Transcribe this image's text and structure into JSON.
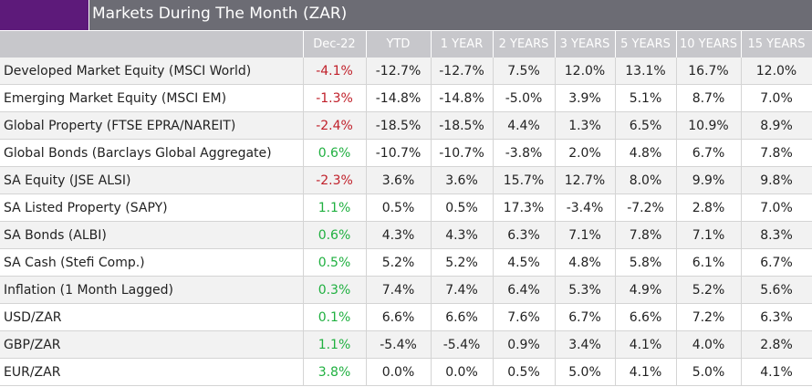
{
  "title": "Markets During The Month (ZAR)",
  "colors": {
    "title_bar": "#6c6c74",
    "title_swatch": "#5d1a7a",
    "header_bg": "#c7c7cb",
    "negative": "#c0202a",
    "positive": "#20b040"
  },
  "chart_data": {
    "type": "table",
    "columns": [
      "Dec-22",
      "YTD",
      "1 YEAR",
      "2 YEARS",
      "3 YEARS",
      "5 YEARS",
      "10 YEARS",
      "15 YEARS"
    ],
    "rows": [
      {
        "label": "Developed Market Equity (MSCI World)",
        "values": [
          "-4.1%",
          "-12.7%",
          "-12.7%",
          "7.5%",
          "12.0%",
          "13.1%",
          "16.7%",
          "12.0%"
        ]
      },
      {
        "label": "Emerging Market Equity (MSCI EM)",
        "values": [
          "-1.3%",
          "-14.8%",
          "-14.8%",
          "-5.0%",
          "3.9%",
          "5.1%",
          "8.7%",
          "7.0%"
        ]
      },
      {
        "label": "Global Property (FTSE EPRA/NAREIT)",
        "values": [
          "-2.4%",
          "-18.5%",
          "-18.5%",
          "4.4%",
          "1.3%",
          "6.5%",
          "10.9%",
          "8.9%"
        ]
      },
      {
        "label": "Global Bonds (Barclays Global Aggregate)",
        "values": [
          "0.6%",
          "-10.7%",
          "-10.7%",
          "-3.8%",
          "2.0%",
          "4.8%",
          "6.7%",
          "7.8%"
        ]
      },
      {
        "label": "SA Equity (JSE ALSI)",
        "values": [
          "-2.3%",
          "3.6%",
          "3.6%",
          "15.7%",
          "12.7%",
          "8.0%",
          "9.9%",
          "9.8%"
        ]
      },
      {
        "label": "SA Listed Property (SAPY)",
        "values": [
          "1.1%",
          "0.5%",
          "0.5%",
          "17.3%",
          "-3.4%",
          "-7.2%",
          "2.8%",
          "7.0%"
        ]
      },
      {
        "label": "SA Bonds (ALBI)",
        "values": [
          "0.6%",
          "4.3%",
          "4.3%",
          "6.3%",
          "7.1%",
          "7.8%",
          "7.1%",
          "8.3%"
        ]
      },
      {
        "label": "SA Cash (Stefi Comp.)",
        "values": [
          "0.5%",
          "5.2%",
          "5.2%",
          "4.5%",
          "4.8%",
          "5.8%",
          "6.1%",
          "6.7%"
        ]
      },
      {
        "label": "Inflation (1 Month Lagged)",
        "values": [
          "0.3%",
          "7.4%",
          "7.4%",
          "6.4%",
          "5.3%",
          "4.9%",
          "5.2%",
          "5.6%"
        ]
      },
      {
        "label": "USD/ZAR",
        "values": [
          "0.1%",
          "6.6%",
          "6.6%",
          "7.6%",
          "6.7%",
          "6.6%",
          "7.2%",
          "6.3%"
        ]
      },
      {
        "label": "GBP/ZAR",
        "values": [
          "1.1%",
          "-5.4%",
          "-5.4%",
          "0.9%",
          "3.4%",
          "4.1%",
          "4.0%",
          "2.8%"
        ]
      },
      {
        "label": "EUR/ZAR",
        "values": [
          "3.8%",
          "0.0%",
          "0.0%",
          "0.5%",
          "5.0%",
          "4.1%",
          "5.0%",
          "4.1%"
        ]
      }
    ]
  }
}
